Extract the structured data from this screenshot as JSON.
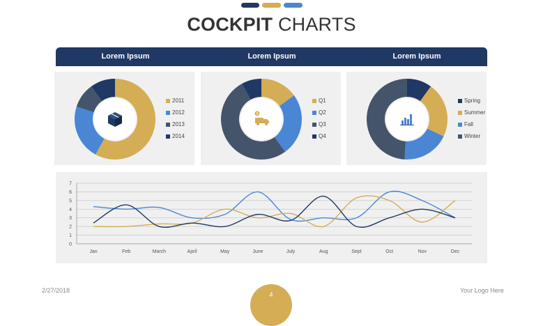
{
  "colors": {
    "navy": "#1f3864",
    "gold": "#d4ad55",
    "blue": "#4a86d4",
    "slate": "#44546a",
    "panel": "#f0f0f0",
    "grid": "#c9c9c9",
    "white": "#ffffff"
  },
  "accent_bars": [
    "#1f3864",
    "#d4ad55",
    "#4a86d4"
  ],
  "title": {
    "bold": "COCKPIT",
    "light": "CHARTS"
  },
  "header": {
    "labels": [
      "Lorem Ipsum",
      "Lorem Ipsum",
      "Lorem Ipsum"
    ]
  },
  "footer": {
    "date": "2/27/2018",
    "logo": "Your Logo Here",
    "page": "4"
  },
  "icons": [
    "package-icon",
    "delivery-truck-icon",
    "bar-chart-icon"
  ],
  "chart_data": [
    {
      "type": "pie",
      "variant": "donut",
      "categories": [
        "2011",
        "2012",
        "2013",
        "2014"
      ],
      "values": [
        58,
        22,
        10,
        10
      ],
      "colors": [
        "#d4ad55",
        "#4a86d4",
        "#44546a",
        "#1f3864"
      ],
      "legend": "right"
    },
    {
      "type": "pie",
      "variant": "donut",
      "categories": [
        "Q1",
        "Q2",
        "Q3",
        "Q4"
      ],
      "values": [
        15,
        25,
        52,
        8
      ],
      "colors": [
        "#d4ad55",
        "#4a86d4",
        "#44546a",
        "#1f3864"
      ],
      "legend": "right"
    },
    {
      "type": "pie",
      "variant": "donut",
      "categories": [
        "Spring",
        "Summer",
        "Fall",
        "Winter"
      ],
      "values": [
        10,
        22,
        19,
        49
      ],
      "colors": [
        "#1f3864",
        "#d4ad55",
        "#4a86d4",
        "#44546a"
      ],
      "legend": "right"
    },
    {
      "type": "line",
      "smooth": true,
      "categories": [
        "Jan",
        "Feb",
        "March",
        "April",
        "May",
        "June",
        "July",
        "Aug",
        "Sept",
        "Oct",
        "Nov",
        "Dec"
      ],
      "ylim": [
        0,
        7
      ],
      "yticks": [
        0,
        1,
        2,
        3,
        4,
        5,
        6,
        7
      ],
      "grid": true,
      "legend": "none",
      "series": [
        {
          "values": [
            4.3,
            4.0,
            4.2,
            3.0,
            3.4,
            6.0,
            2.8,
            3.0,
            3.0,
            6.0,
            5.0,
            3.0
          ],
          "color": "#4a86d4"
        },
        {
          "values": [
            2.0,
            2.0,
            2.3,
            2.4,
            4.0,
            3.0,
            3.5,
            2.0,
            5.3,
            5.0,
            2.5,
            5.0
          ],
          "color": "#d4ad55"
        },
        {
          "values": [
            2.4,
            4.5,
            2.0,
            2.4,
            2.0,
            3.4,
            2.7,
            5.5,
            2.0,
            3.0,
            4.0,
            3.0
          ],
          "color": "#1f3864"
        }
      ]
    }
  ]
}
